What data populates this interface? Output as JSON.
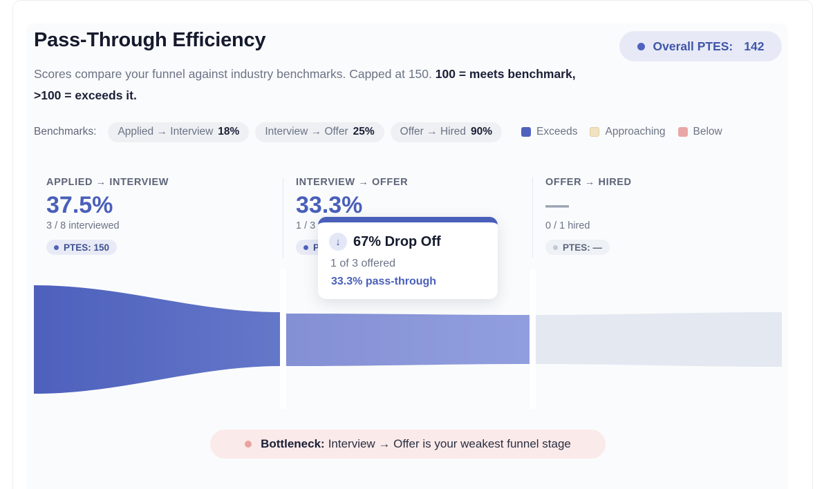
{
  "title": "Pass-Through Efficiency",
  "subtitle": {
    "text": "Scores compare your funnel against industry benchmarks. Capped at 150.",
    "emphasis": "100 = meets benchmark, >100 = exceeds it."
  },
  "overall": {
    "label": "Overall PTES:",
    "value": "142"
  },
  "benchmarks": {
    "label": "Benchmarks:",
    "items": [
      {
        "name": "Applied → Interview",
        "value": "18%"
      },
      {
        "name": "Interview → Offer",
        "value": "25%"
      },
      {
        "name": "Offer → Hired",
        "value": "90%"
      }
    ]
  },
  "legend": [
    {
      "label": "Exceeds",
      "color": "#4f63be"
    },
    {
      "label": "Approaching",
      "color": "#f1e2c2"
    },
    {
      "label": "Below",
      "color": "#eaa7a7"
    }
  ],
  "stages": [
    {
      "label": "APPLIED → INTERVIEW",
      "pct": "37.5%",
      "sub": "3 / 8 interviewed",
      "ptes": "PTES: 150"
    },
    {
      "label": "INTERVIEW → OFFER",
      "pct": "33.3%",
      "sub": "1 / 3",
      "ptes": "P"
    },
    {
      "label": "OFFER → HIRED",
      "pct": "—",
      "sub": "0 / 1 hired",
      "ptes": "PTES: —"
    }
  ],
  "tooltip": {
    "title": "67% Drop Off",
    "sub": "1 of 3 offered",
    "pass": "33.3% pass-through",
    "icon": "arrow-down-icon"
  },
  "bottleneck": {
    "label": "Bottleneck:",
    "text": "Interview → Offer is your weakest funnel stage"
  },
  "colors": {
    "accent": "#4a5fb9",
    "stage2": "#8a97d8",
    "stage3": "#e3e8f1",
    "bottleneck_bg": "#fbeaea"
  }
}
